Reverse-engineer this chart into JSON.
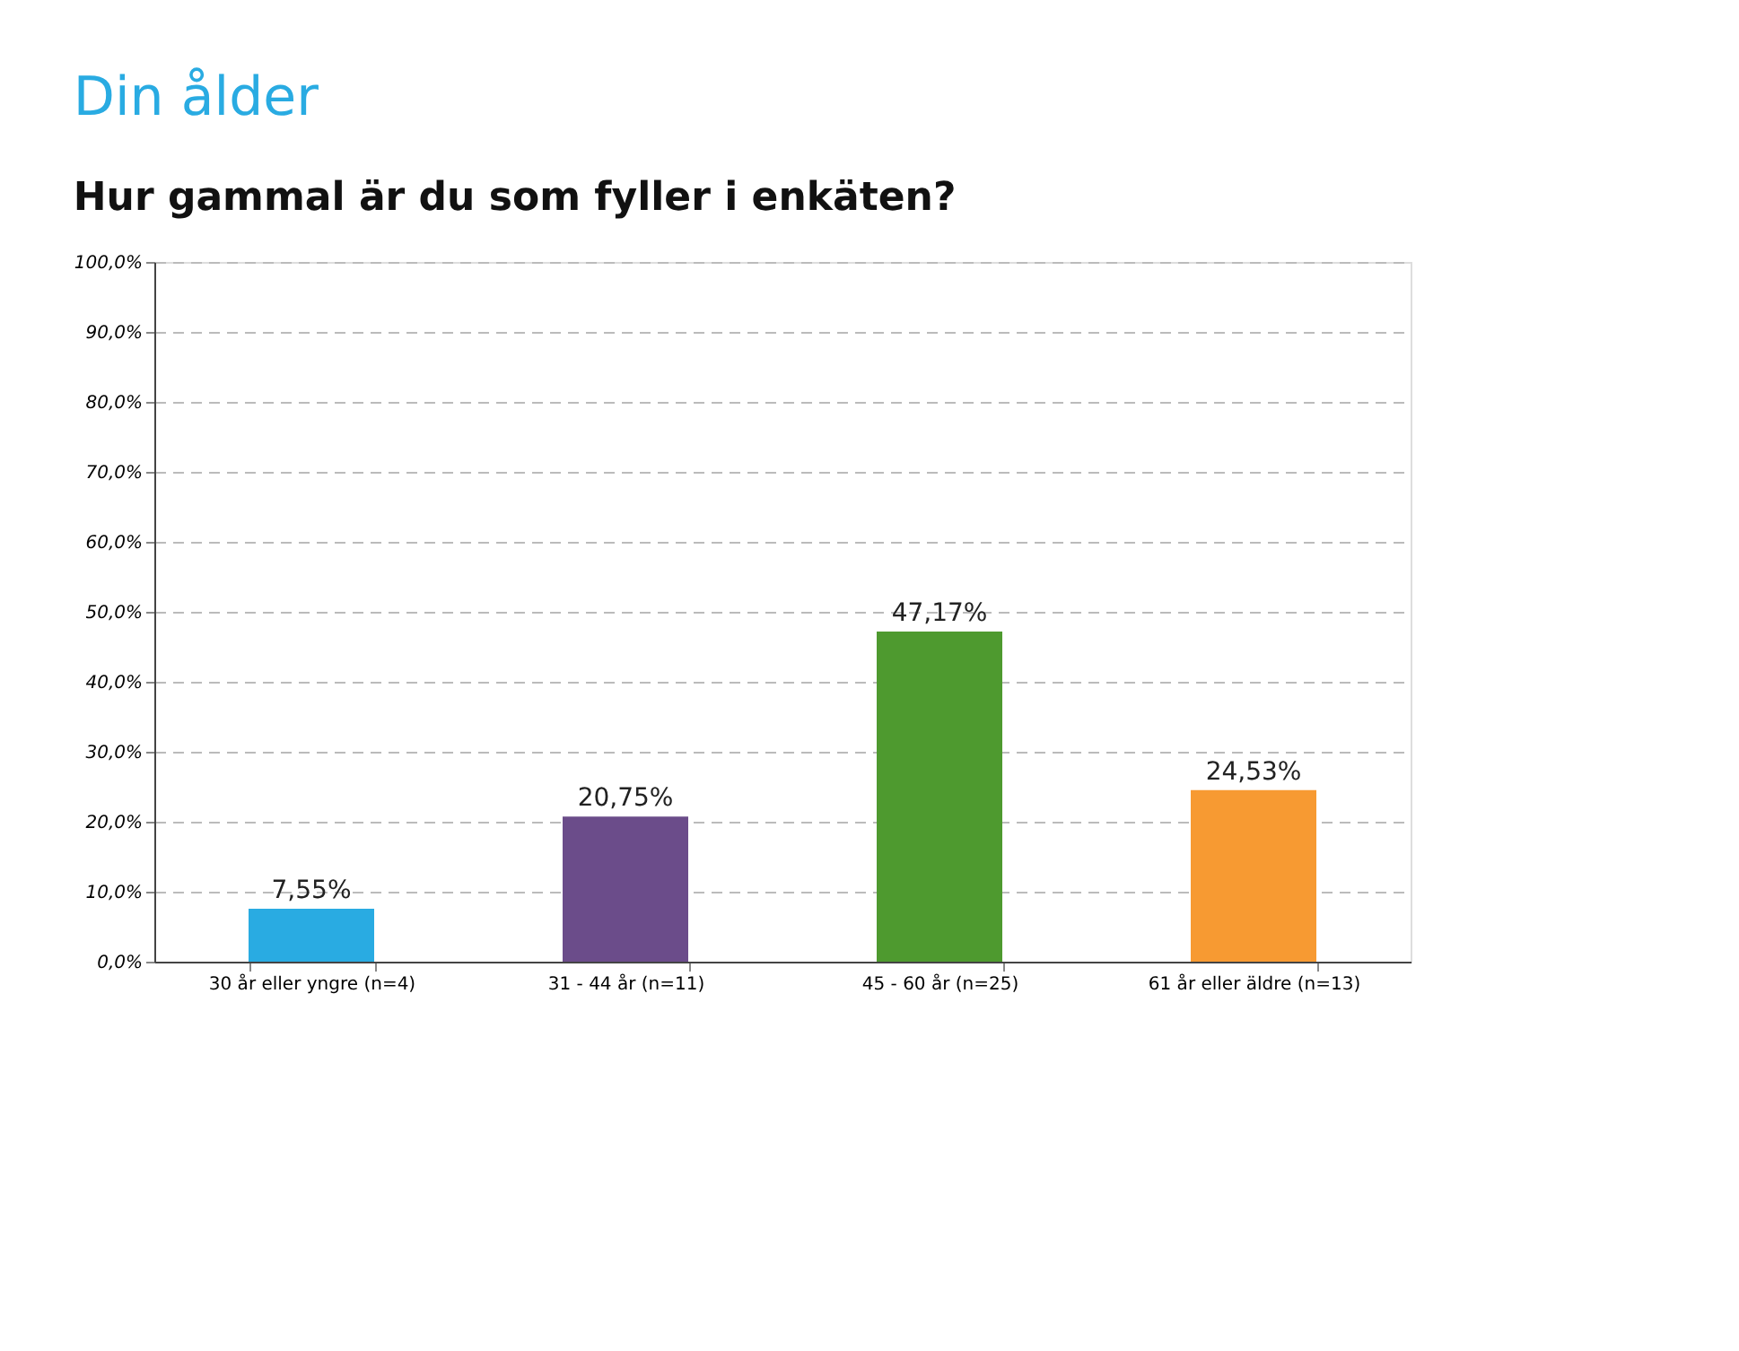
{
  "chart_data": {
    "type": "bar",
    "title": "Din ålder",
    "subtitle": "Hur gammal är du som fyller i enkäten?",
    "categories": [
      "30 år eller yngre (n=4)",
      "31 - 44 år (n=11)",
      "45 - 60 år (n=25)",
      "61 år eller äldre (n=13)"
    ],
    "values": [
      7.55,
      20.75,
      47.17,
      24.53
    ],
    "colors": [
      "#29abe2",
      "#6b4c8a",
      "#4e9a2f",
      "#f79a32"
    ],
    "value_labels": [
      "7,55%",
      "20,75%",
      "47,17%",
      "24,53%"
    ],
    "ylim": [
      0,
      100
    ],
    "yticks": [
      {
        "value": 0,
        "label": "0,0%"
      },
      {
        "value": 10,
        "label": "10,0%"
      },
      {
        "value": 20,
        "label": "20,0%"
      },
      {
        "value": 30,
        "label": "30,0%"
      },
      {
        "value": 40,
        "label": "40,0%"
      },
      {
        "value": 50,
        "label": "50,0%"
      },
      {
        "value": 60,
        "label": "60,0%"
      },
      {
        "value": 70,
        "label": "70,0%"
      },
      {
        "value": 80,
        "label": "80,0%"
      },
      {
        "value": 90,
        "label": "90,0%"
      },
      {
        "value": 100,
        "label": "100,0%"
      }
    ],
    "grid": "y",
    "legend": false
  }
}
